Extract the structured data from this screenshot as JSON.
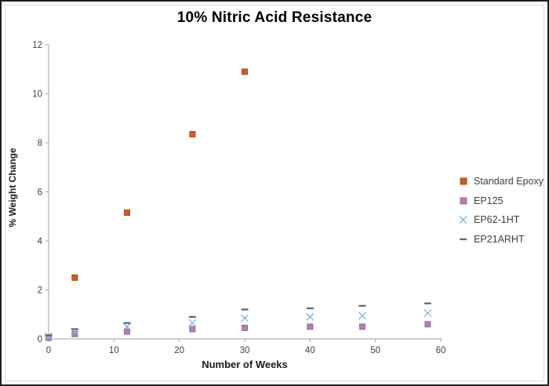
{
  "window": {
    "background": "#ffffff",
    "outer_border_color": "#1f1f1f",
    "inner_border_color": "#d9d9d9"
  },
  "chart_data": {
    "type": "scatter",
    "title": "10% Nitric Acid Resistance",
    "xlabel": "Number of Weeks",
    "ylabel": "% Weight Change",
    "xlim": [
      0,
      60
    ],
    "ylim": [
      0,
      12
    ],
    "x_ticks": [
      0,
      10,
      20,
      30,
      40,
      50,
      60
    ],
    "y_ticks": [
      0,
      2,
      4,
      6,
      8,
      10,
      12
    ],
    "grid": false,
    "legend_position": "right",
    "axis_color": "#a6a6a6",
    "tick_label_color": "#3f3f3f",
    "series": [
      {
        "name": "Standard Epoxy",
        "marker": "square",
        "color": "#ce5b2b",
        "edge_color": "#b04a1d",
        "points": [
          [
            0,
            0.05
          ],
          [
            4,
            2.5
          ],
          [
            12,
            5.15
          ],
          [
            22,
            8.35
          ],
          [
            30,
            10.9
          ]
        ]
      },
      {
        "name": "EP125",
        "marker": "square",
        "color": "#b47fb2",
        "edge_color": "#966d96",
        "points": [
          [
            0,
            0.05
          ],
          [
            4,
            0.2
          ],
          [
            12,
            0.3
          ],
          [
            22,
            0.4
          ],
          [
            30,
            0.45
          ],
          [
            40,
            0.5
          ],
          [
            48,
            0.5
          ],
          [
            58,
            0.6
          ]
        ]
      },
      {
        "name": "EP62-1HT",
        "marker": "x",
        "color": "#82b5db",
        "edge_color": "#82b5db",
        "points": [
          [
            0,
            0.1
          ],
          [
            4,
            0.3
          ],
          [
            12,
            0.5
          ],
          [
            22,
            0.65
          ],
          [
            30,
            0.85
          ],
          [
            40,
            0.9
          ],
          [
            48,
            0.95
          ],
          [
            58,
            1.05
          ]
        ]
      },
      {
        "name": "EP21ARHT",
        "marker": "dash",
        "color": "#5a6672",
        "edge_color": "#5a6672",
        "points": [
          [
            0,
            0.15
          ],
          [
            4,
            0.4
          ],
          [
            12,
            0.65
          ],
          [
            22,
            0.9
          ],
          [
            30,
            1.2
          ],
          [
            40,
            1.25
          ],
          [
            48,
            1.35
          ],
          [
            58,
            1.45
          ]
        ]
      }
    ]
  }
}
